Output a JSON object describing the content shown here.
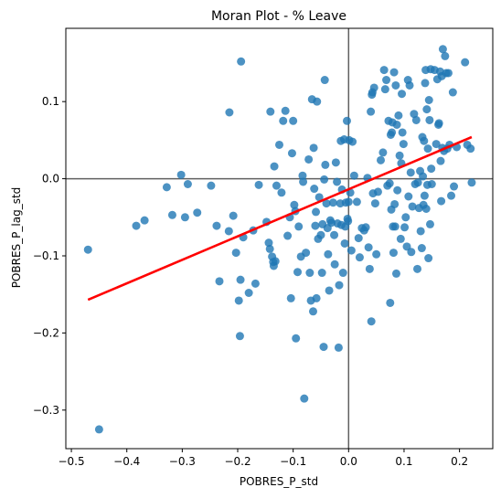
{
  "chart_data": {
    "type": "scatter",
    "title": "Moran Plot - % Leave",
    "xlabel": "POBRES_P_std",
    "ylabel": "POBRES_P_lag_std",
    "xlim": [
      -0.51,
      0.26
    ],
    "ylim": [
      -0.35,
      0.195
    ],
    "xticks": [
      -0.5,
      -0.4,
      -0.3,
      -0.2,
      -0.1,
      0.0,
      0.1,
      0.2
    ],
    "xtick_labels": [
      "−0.5",
      "−0.4",
      "−0.3",
      "−0.2",
      "−0.1",
      "0.0",
      "0.1",
      "0.2"
    ],
    "yticks": [
      -0.3,
      -0.2,
      -0.1,
      0.0,
      0.1
    ],
    "ytick_labels": [
      "−0.3",
      "−0.2",
      "−0.1",
      "0.0",
      "0.1"
    ],
    "grid": false,
    "reference_lines": {
      "x": 0.0,
      "y": 0.0,
      "color": "#606060"
    },
    "point_color": "#1f77b4",
    "point_alpha": 0.8,
    "fit_line": {
      "color": "#ff0000",
      "x": [
        -0.47,
        0.222
      ],
      "y": [
        -0.157,
        0.054
      ]
    },
    "points": [
      [
        -0.47,
        -0.092
      ],
      [
        -0.45,
        -0.325
      ],
      [
        -0.383,
        -0.061
      ],
      [
        -0.368,
        -0.054
      ],
      [
        -0.328,
        -0.011
      ],
      [
        -0.318,
        -0.047
      ],
      [
        -0.302,
        0.005
      ],
      [
        -0.295,
        -0.05
      ],
      [
        -0.29,
        -0.007
      ],
      [
        -0.273,
        -0.044
      ],
      [
        -0.248,
        -0.009
      ],
      [
        -0.238,
        -0.061
      ],
      [
        -0.233,
        -0.133
      ],
      [
        -0.216,
        -0.068
      ],
      [
        -0.215,
        0.086
      ],
      [
        -0.208,
        -0.048
      ],
      [
        -0.203,
        -0.096
      ],
      [
        -0.198,
        -0.158
      ],
      [
        -0.196,
        -0.204
      ],
      [
        -0.195,
        -0.131
      ],
      [
        -0.194,
        0.152
      ],
      [
        -0.19,
        -0.076
      ],
      [
        -0.18,
        -0.148
      ],
      [
        -0.172,
        -0.067
      ],
      [
        -0.168,
        -0.136
      ],
      [
        -0.162,
        -0.008
      ],
      [
        -0.148,
        -0.056
      ],
      [
        -0.144,
        -0.083
      ],
      [
        -0.142,
        -0.091
      ],
      [
        -0.141,
        0.087
      ],
      [
        -0.138,
        -0.101
      ],
      [
        -0.136,
        -0.108
      ],
      [
        -0.135,
        -0.113
      ],
      [
        -0.134,
        0.016
      ],
      [
        -0.132,
        -0.107
      ],
      [
        -0.13,
        -0.009
      ],
      [
        -0.125,
        0.044
      ],
      [
        -0.121,
        -0.018
      ],
      [
        -0.118,
        0.075
      ],
      [
        -0.114,
        0.088
      ],
      [
        -0.11,
        -0.074
      ],
      [
        -0.106,
        -0.05
      ],
      [
        -0.104,
        -0.155
      ],
      [
        -0.102,
        0.033
      ],
      [
        -0.1,
        0.075
      ],
      [
        -0.098,
        -0.034
      ],
      [
        -0.096,
        -0.042
      ],
      [
        -0.095,
        -0.207
      ],
      [
        -0.092,
        -0.121
      ],
      [
        -0.09,
        -0.062
      ],
      [
        -0.086,
        -0.101
      ],
      [
        -0.083,
        0.004
      ],
      [
        -0.082,
        -0.004
      ],
      [
        -0.08,
        -0.285
      ],
      [
        -0.077,
        -0.096
      ],
      [
        -0.072,
        0.025
      ],
      [
        -0.07,
        -0.122
      ],
      [
        -0.068,
        -0.158
      ],
      [
        -0.066,
        0.103
      ],
      [
        -0.064,
        -0.172
      ],
      [
        -0.063,
        0.04
      ],
      [
        -0.062,
        -0.013
      ],
      [
        -0.06,
        -0.061
      ],
      [
        -0.059,
        -0.043
      ],
      [
        -0.058,
        -0.155
      ],
      [
        -0.057,
        0.1
      ],
      [
        -0.055,
        -0.078
      ],
      [
        -0.053,
        -0.024
      ],
      [
        -0.05,
        -0.073
      ],
      [
        -0.048,
        -0.122
      ],
      [
        -0.047,
        -0.059
      ],
      [
        -0.045,
        -0.218
      ],
      [
        -0.044,
        -0.001
      ],
      [
        -0.043,
        0.128
      ],
      [
        -0.042,
        0.018
      ],
      [
        -0.04,
        -0.032
      ],
      [
        -0.038,
        -0.064
      ],
      [
        -0.037,
        -0.098
      ],
      [
        -0.035,
        -0.145
      ],
      [
        -0.033,
        -0.054
      ],
      [
        -0.031,
        -0.057
      ],
      [
        -0.028,
        -0.031
      ],
      [
        -0.026,
        -0.073
      ],
      [
        -0.025,
        -0.111
      ],
      [
        -0.023,
        0.021
      ],
      [
        -0.021,
        -0.004
      ],
      [
        -0.02,
        -0.058
      ],
      [
        -0.018,
        -0.219
      ],
      [
        -0.017,
        -0.138
      ],
      [
        -0.015,
        -0.032
      ],
      [
        -0.014,
        0.049
      ],
      [
        -0.013,
        -0.06
      ],
      [
        -0.012,
        -0.014
      ],
      [
        -0.01,
        -0.122
      ],
      [
        -0.008,
        0.051
      ],
      [
        -0.007,
        -0.084
      ],
      [
        -0.006,
        -0.062
      ],
      [
        -0.005,
        -0.031
      ],
      [
        -0.003,
        0.075
      ],
      [
        -0.002,
        -0.052
      ],
      [
        -0.001,
        -0.055
      ],
      [
        0.0,
        -0.03
      ],
      [
        0.001,
        0.05
      ],
      [
        0.003,
        -0.018
      ],
      [
        0.005,
        -0.093
      ],
      [
        0.007,
        0.048
      ],
      [
        0.01,
        0.004
      ],
      [
        0.015,
        -0.03
      ],
      [
        0.018,
        -0.077
      ],
      [
        0.02,
        -0.102
      ],
      [
        0.024,
        -0.064
      ],
      [
        0.028,
        -0.067
      ],
      [
        0.031,
        -0.063
      ],
      [
        0.034,
        0.001
      ],
      [
        0.036,
        -0.089
      ],
      [
        0.038,
        -0.117
      ],
      [
        0.04,
        0.087
      ],
      [
        0.041,
        -0.185
      ],
      [
        0.042,
        0.109
      ],
      [
        0.043,
        0.112
      ],
      [
        0.044,
        -0.019
      ],
      [
        0.046,
        0.118
      ],
      [
        0.048,
        -0.032
      ],
      [
        0.05,
        -0.098
      ],
      [
        0.053,
        -0.017
      ],
      [
        0.058,
        0.024
      ],
      [
        0.062,
        0.034
      ],
      [
        0.064,
        0.141
      ],
      [
        0.066,
        0.116
      ],
      [
        0.068,
        0.128
      ],
      [
        0.07,
        -0.009
      ],
      [
        0.072,
        0.075
      ],
      [
        0.074,
        -0.006
      ],
      [
        0.075,
        -0.161
      ],
      [
        0.076,
        0.057
      ],
      [
        0.077,
        -0.04
      ],
      [
        0.078,
        0.06
      ],
      [
        0.079,
        0.073
      ],
      [
        0.08,
        -0.062
      ],
      [
        0.081,
        -0.096
      ],
      [
        0.082,
        0.138
      ],
      [
        0.083,
        -0.033
      ],
      [
        0.084,
        -0.062
      ],
      [
        0.085,
        0.121
      ],
      [
        0.086,
        -0.123
      ],
      [
        0.087,
        0.07
      ],
      [
        0.088,
        -0.015
      ],
      [
        0.09,
        0.082
      ],
      [
        0.092,
        0.03
      ],
      [
        0.094,
        -0.078
      ],
      [
        0.095,
        0.02
      ],
      [
        0.096,
        0.11
      ],
      [
        0.097,
        0.06
      ],
      [
        0.099,
        0.045
      ],
      [
        0.101,
        -0.063
      ],
      [
        0.103,
        -0.05
      ],
      [
        0.105,
        -0.088
      ],
      [
        0.107,
        0.128
      ],
      [
        0.108,
        -0.023
      ],
      [
        0.11,
        0.121
      ],
      [
        0.112,
        0.008
      ],
      [
        0.113,
        -0.095
      ],
      [
        0.115,
        -0.036
      ],
      [
        0.118,
        0.084
      ],
      [
        0.12,
        -0.007
      ],
      [
        0.122,
        0.076
      ],
      [
        0.124,
        -0.117
      ],
      [
        0.125,
        -0.005
      ],
      [
        0.127,
        -0.038
      ],
      [
        0.129,
        0.01
      ],
      [
        0.13,
        -0.068
      ],
      [
        0.132,
        -0.09
      ],
      [
        0.133,
        0.054
      ],
      [
        0.134,
        0.003
      ],
      [
        0.135,
        -0.034
      ],
      [
        0.136,
        0.049
      ],
      [
        0.137,
        -0.022
      ],
      [
        0.138,
        0.124
      ],
      [
        0.139,
        0.141
      ],
      [
        0.14,
        -0.039
      ],
      [
        0.141,
        0.09
      ],
      [
        0.142,
        -0.008
      ],
      [
        0.143,
        0.039
      ],
      [
        0.144,
        -0.103
      ],
      [
        0.145,
        0.102
      ],
      [
        0.146,
        0.076
      ],
      [
        0.147,
        -0.059
      ],
      [
        0.148,
        0.142
      ],
      [
        0.149,
        0.013
      ],
      [
        0.15,
        -0.007
      ],
      [
        0.155,
        0.141
      ],
      [
        0.158,
        0.045
      ],
      [
        0.16,
        0.129
      ],
      [
        0.162,
        0.07
      ],
      [
        0.163,
        0.072
      ],
      [
        0.165,
        0.139
      ],
      [
        0.166,
        0.023
      ],
      [
        0.167,
        -0.029
      ],
      [
        0.168,
        0.133
      ],
      [
        0.169,
        0.04
      ],
      [
        0.17,
        0.168
      ],
      [
        0.172,
        0.036
      ],
      [
        0.174,
        0.159
      ],
      [
        0.176,
        0.137
      ],
      [
        0.178,
        0.039
      ],
      [
        0.18,
        0.137
      ],
      [
        0.182,
        0.044
      ],
      [
        0.185,
        -0.022
      ],
      [
        0.188,
        0.112
      ],
      [
        0.19,
        -0.01
      ],
      [
        0.195,
        0.041
      ],
      [
        0.21,
        0.151
      ],
      [
        0.214,
        0.044
      ],
      [
        0.22,
        0.039
      ],
      [
        0.222,
        -0.005
      ]
    ]
  }
}
